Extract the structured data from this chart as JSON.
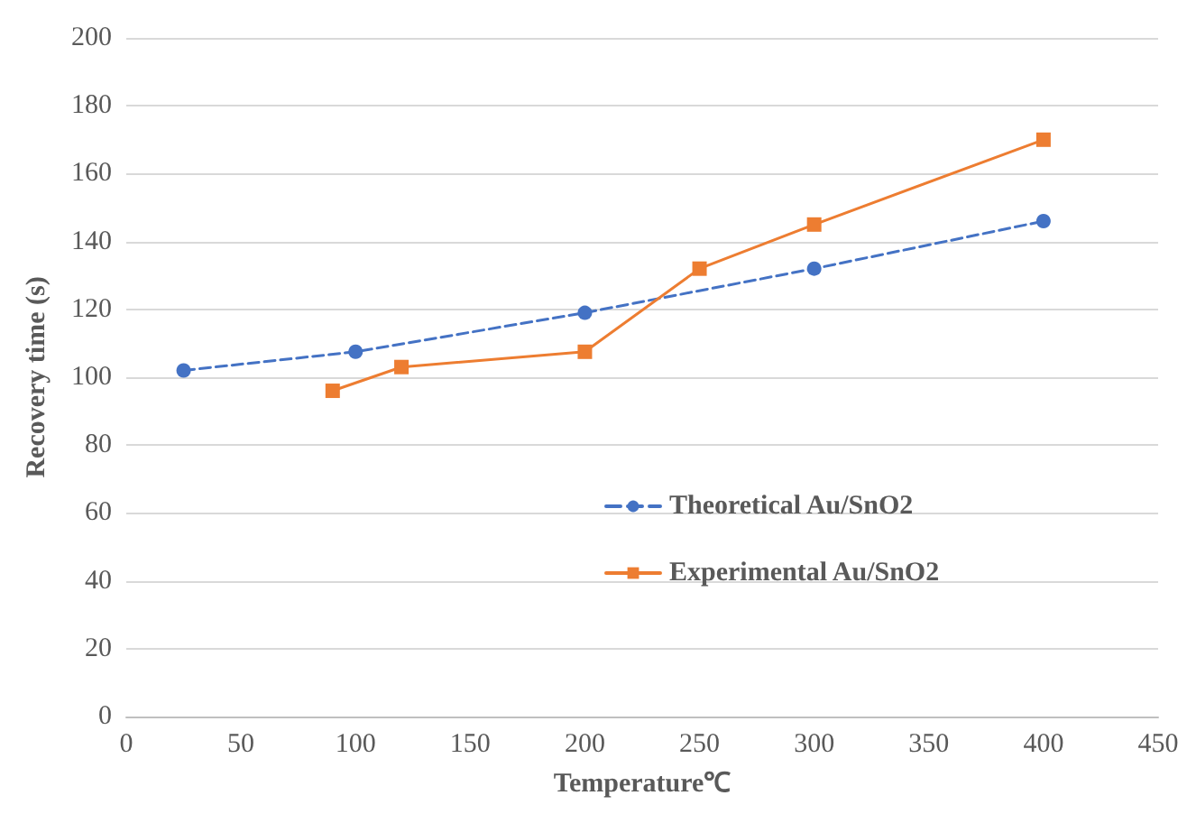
{
  "chart_data": {
    "type": "line",
    "xlabel": "Temperature℃",
    "ylabel": "Recovery time (s)",
    "xlim": [
      0,
      450
    ],
    "xticks": [
      0,
      50,
      100,
      150,
      200,
      250,
      300,
      350,
      400,
      450
    ],
    "ylim": [
      0,
      200
    ],
    "yticks": [
      0,
      20,
      40,
      60,
      80,
      100,
      120,
      140,
      160,
      180,
      200
    ],
    "grid": "y",
    "legend": "right",
    "series": [
      {
        "name": "Theoretical Au/SnO2",
        "color": "#4472c4",
        "marker": "circle",
        "line_style": "dashed",
        "x": [
          25,
          100,
          200,
          300,
          400
        ],
        "values": [
          102,
          107.5,
          119,
          132,
          146
        ]
      },
      {
        "name": "Experimental Au/SnO2",
        "color": "#ed7d31",
        "marker": "square",
        "line_style": "solid",
        "x": [
          90,
          120,
          200,
          250,
          300,
          400
        ],
        "values": [
          96,
          103,
          107.5,
          132,
          145,
          170
        ]
      }
    ]
  }
}
